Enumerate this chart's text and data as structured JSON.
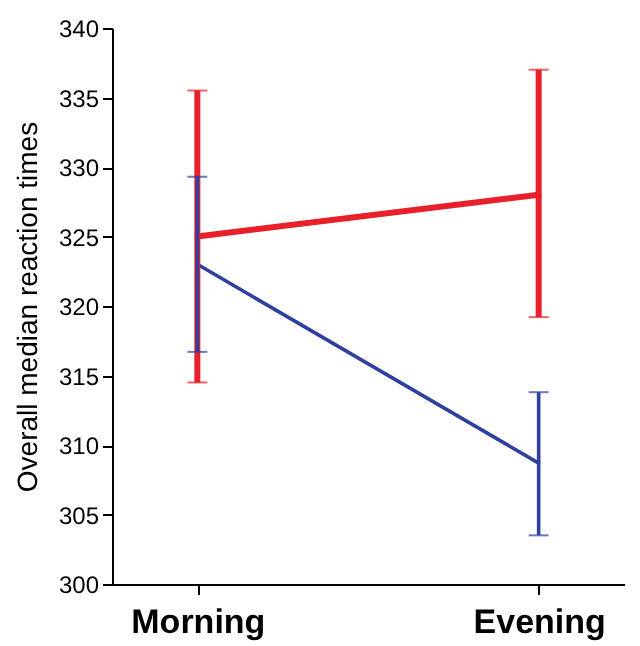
{
  "chart_data": {
    "type": "line",
    "ylabel": "Overall median reaction times",
    "categories": [
      "Morning",
      "Evening"
    ],
    "series": [
      {
        "color": "#e8202a",
        "values": [
          325,
          328
        ],
        "errors": [
          [
            314.5,
            335.5
          ],
          [
            319.2,
            337
          ]
        ]
      },
      {
        "color": "#2e3f9e",
        "values": [
          323,
          308.7
        ],
        "errors": [
          [
            316.7,
            329.3
          ],
          [
            303.5,
            313.8
          ]
        ]
      }
    ],
    "ylim": [
      300,
      340
    ],
    "yticks": [
      300,
      305,
      310,
      315,
      320,
      325,
      330,
      335,
      340
    ],
    "grid": false,
    "legend": false
  }
}
